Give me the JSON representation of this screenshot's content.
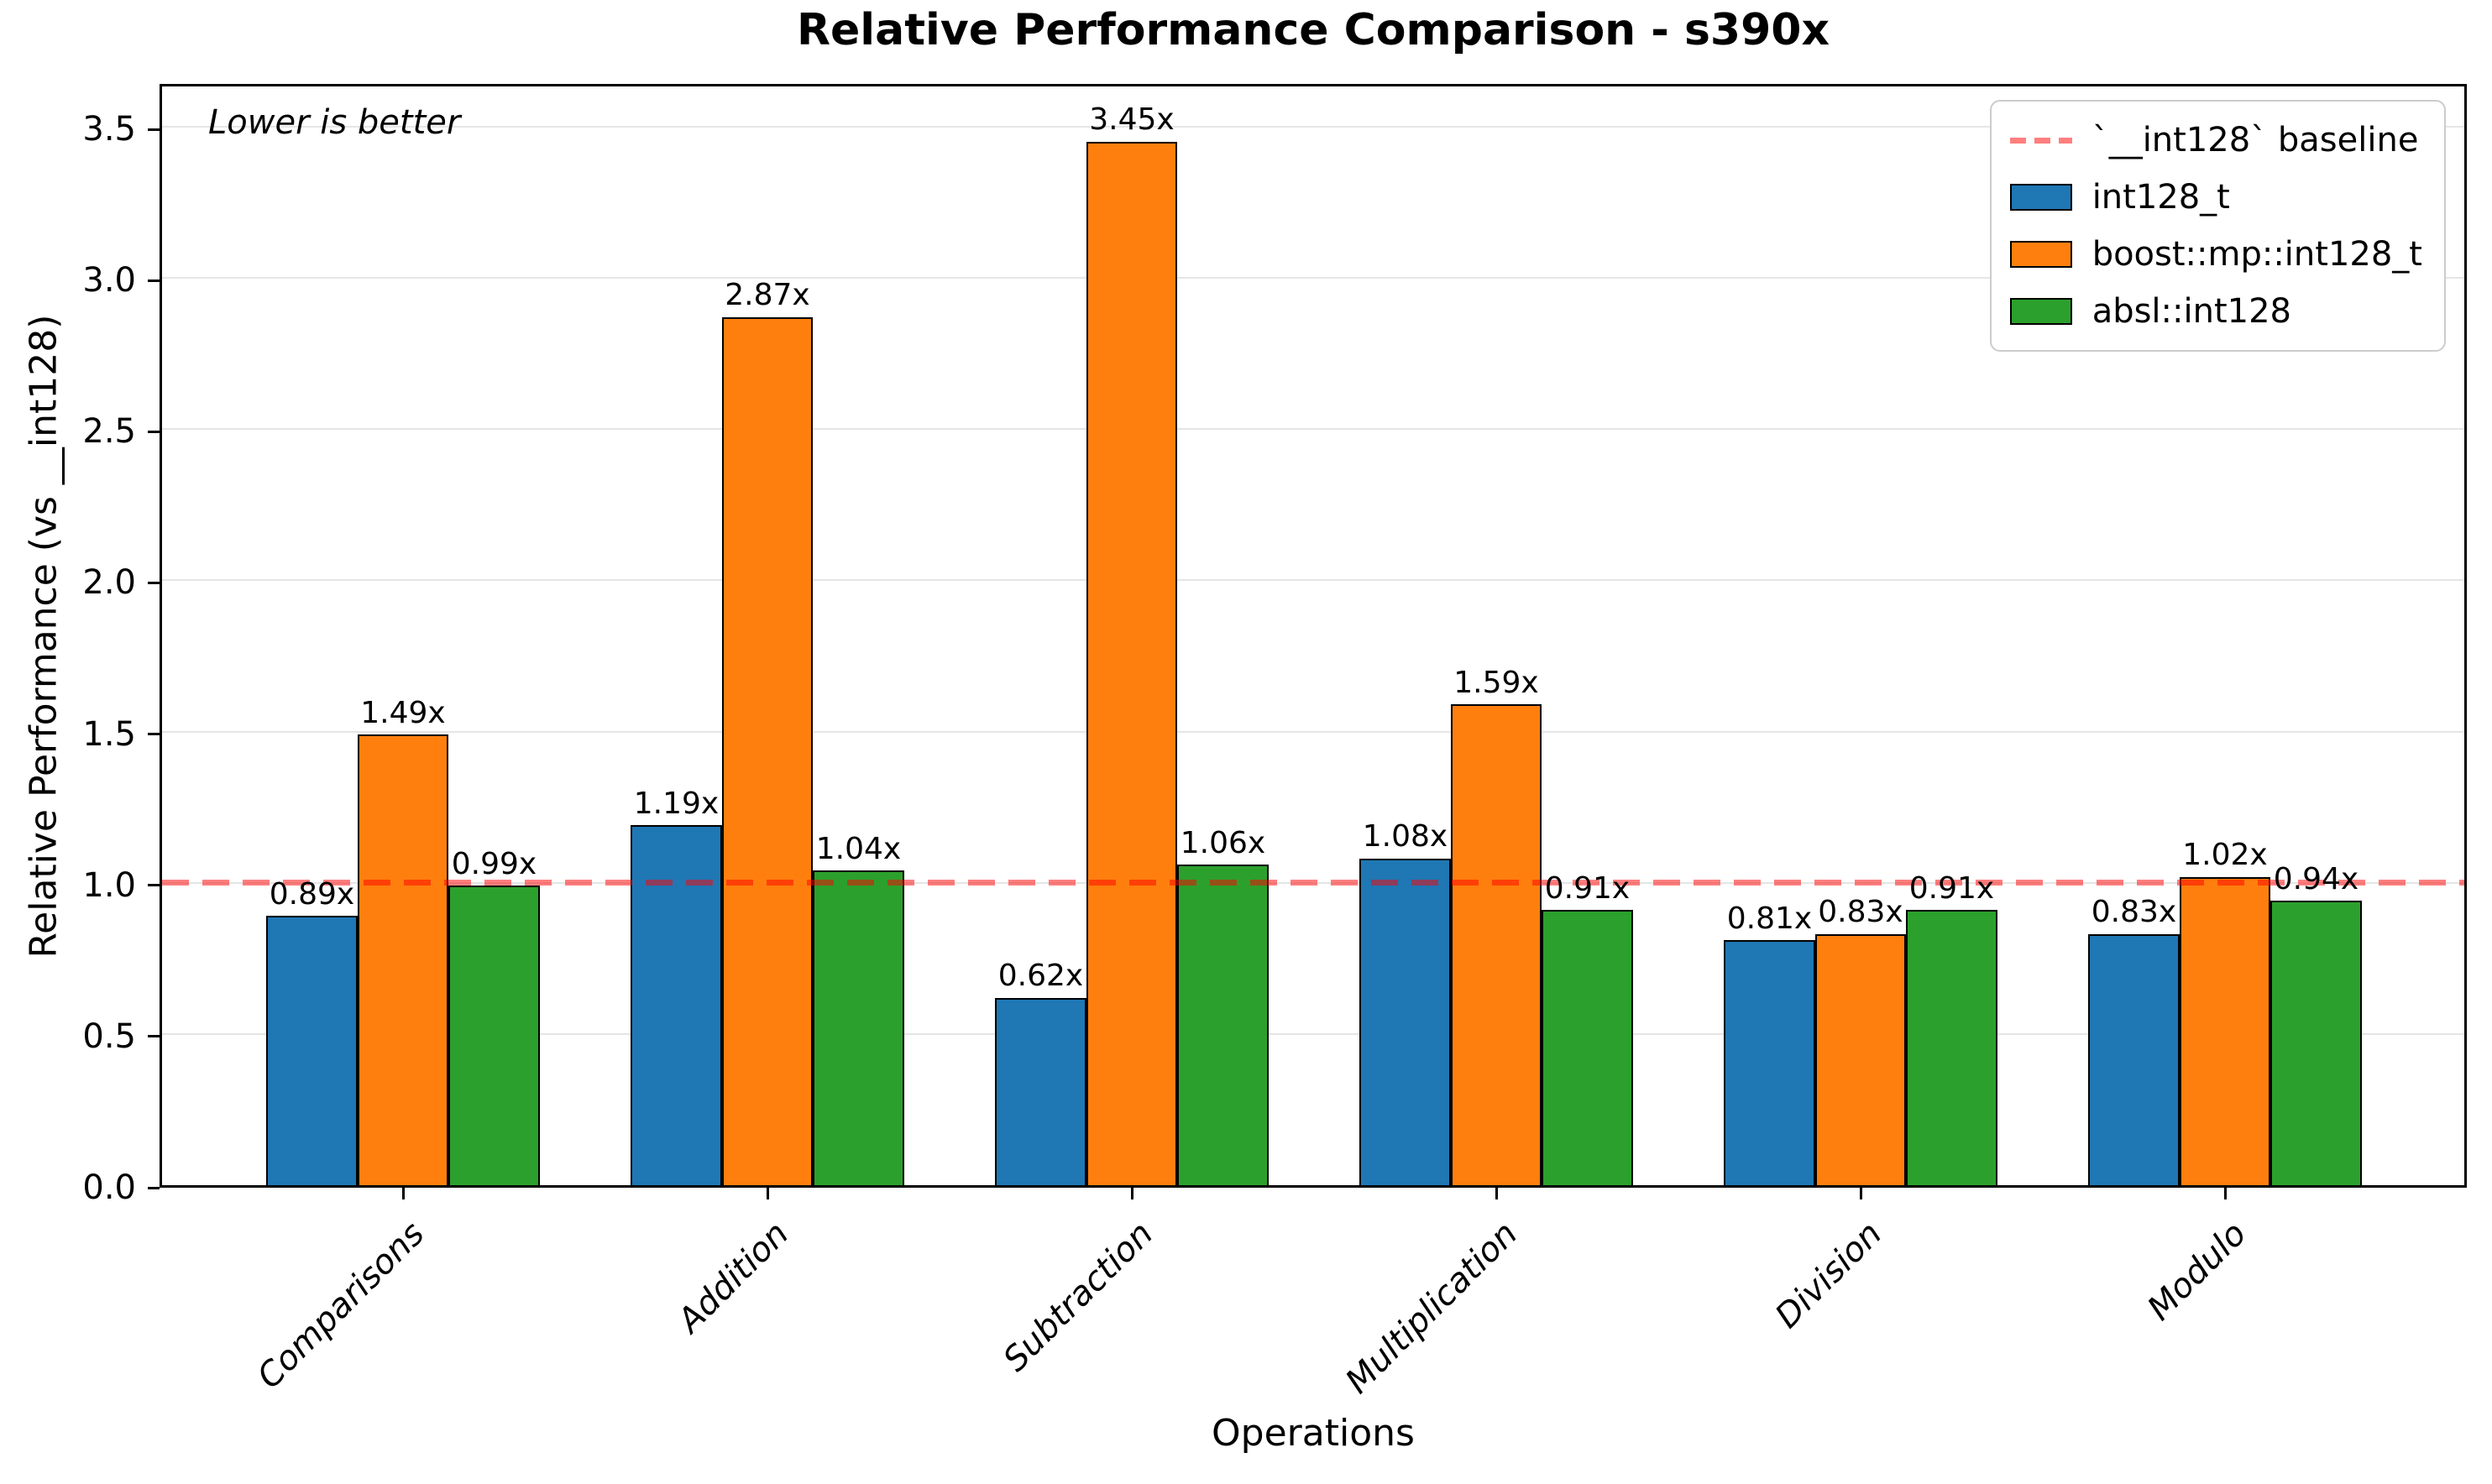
{
  "title": "Relative Performance Comparison - s390x",
  "annotation": "Lower is better",
  "xlabel": "Operations",
  "ylabel": "Relative Performance (vs __int128)",
  "chart_data": {
    "type": "bar",
    "categories": [
      "Comparisons",
      "Addition",
      "Subtraction",
      "Multiplication",
      "Division",
      "Modulo"
    ],
    "series": [
      {
        "name": "int128_t",
        "color": "#1f77b4",
        "values": [
          0.89,
          1.19,
          0.62,
          1.08,
          0.81,
          0.83
        ]
      },
      {
        "name": "boost::mp::int128_t",
        "color": "#ff7f0e",
        "values": [
          1.49,
          2.87,
          3.45,
          1.59,
          0.83,
          1.02
        ]
      },
      {
        "name": "absl::int128",
        "color": "#2ca02c",
        "values": [
          0.99,
          1.04,
          1.06,
          0.91,
          0.91,
          0.94
        ]
      }
    ],
    "value_label_suffix": "x",
    "baseline": {
      "value": 1.0,
      "label": "`__int128` baseline",
      "color": "#ff0000"
    },
    "yticks": [
      0.0,
      0.5,
      1.0,
      1.5,
      2.0,
      2.5,
      3.0,
      3.5
    ],
    "ylim": [
      0,
      3.65
    ],
    "grid": true,
    "legend_position": "upper right"
  }
}
